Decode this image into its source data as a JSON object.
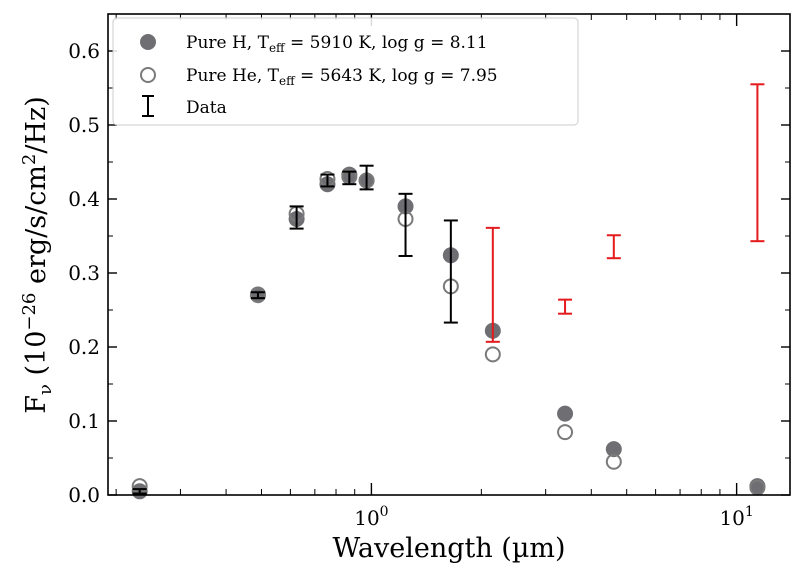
{
  "chart_data": {
    "type": "scatter",
    "xlabel": "Wavelength (µm)",
    "ylabel": {
      "main": "F",
      "sub": "ν",
      "rest1": " (10",
      "sup1": "−26",
      "rest2": " erg/s/cm",
      "sup2": "2",
      "rest3": "/Hz)"
    },
    "xscale": "log",
    "xlim": [
      0.19,
      14
    ],
    "ylim": [
      0.0,
      0.65
    ],
    "xticks": [
      {
        "value": 1,
        "base": "10",
        "exp": "0"
      },
      {
        "value": 10,
        "base": "10",
        "exp": "1"
      }
    ],
    "yticks": [
      "0.0",
      "0.1",
      "0.2",
      "0.3",
      "0.4",
      "0.5",
      "0.6"
    ],
    "grid": false,
    "legend_placement": "top-left",
    "legend": [
      {
        "pre": "Pure H, T",
        "sub": "eff",
        "post": " = 5910 K, log g = 8.11"
      },
      {
        "pre": "Pure He, T",
        "sub": "eff",
        "post": " = 5643 K, log g = 7.95"
      },
      {
        "pre": "Data",
        "sub": "",
        "post": ""
      }
    ],
    "colors": {
      "pure_h": "#6e6e73",
      "pure_he": "#7a7a7a",
      "data": "#000000",
      "data_excess": "#e41a1c"
    },
    "series": [
      {
        "name": "Pure H",
        "marker": "filled-circle",
        "x": [
          0.232,
          0.489,
          0.624,
          0.758,
          0.87,
          0.97,
          1.24,
          1.65,
          2.15,
          3.39,
          4.61,
          11.4
        ],
        "y": [
          0.005,
          0.271,
          0.373,
          0.42,
          0.433,
          0.425,
          0.39,
          0.324,
          0.222,
          0.11,
          0.062,
          0.012
        ]
      },
      {
        "name": "Pure He",
        "marker": "open-circle",
        "x": [
          0.232,
          0.489,
          0.624,
          0.758,
          0.87,
          0.97,
          1.24,
          1.65,
          2.15,
          3.39,
          4.61,
          11.4
        ],
        "y": [
          0.012,
          0.27,
          0.38,
          0.427,
          0.43,
          0.425,
          0.373,
          0.282,
          0.19,
          0.085,
          0.045,
          0.01
        ]
      },
      {
        "name": "Data",
        "marker": "errorbar",
        "x": [
          0.232,
          0.489,
          0.624,
          0.758,
          0.87,
          0.97,
          1.24,
          1.65,
          2.15,
          3.39,
          4.61,
          11.4
        ],
        "ylow": [
          0.002,
          0.266,
          0.36,
          0.417,
          0.42,
          0.413,
          0.323,
          0.233,
          0.207,
          0.245,
          0.32,
          0.343
        ],
        "yhigh": [
          0.008,
          0.274,
          0.39,
          0.433,
          0.437,
          0.445,
          0.407,
          0.371,
          0.361,
          0.264,
          0.351,
          0.555
        ],
        "excess": [
          false,
          false,
          false,
          false,
          false,
          false,
          false,
          false,
          true,
          true,
          true,
          true
        ]
      }
    ]
  }
}
